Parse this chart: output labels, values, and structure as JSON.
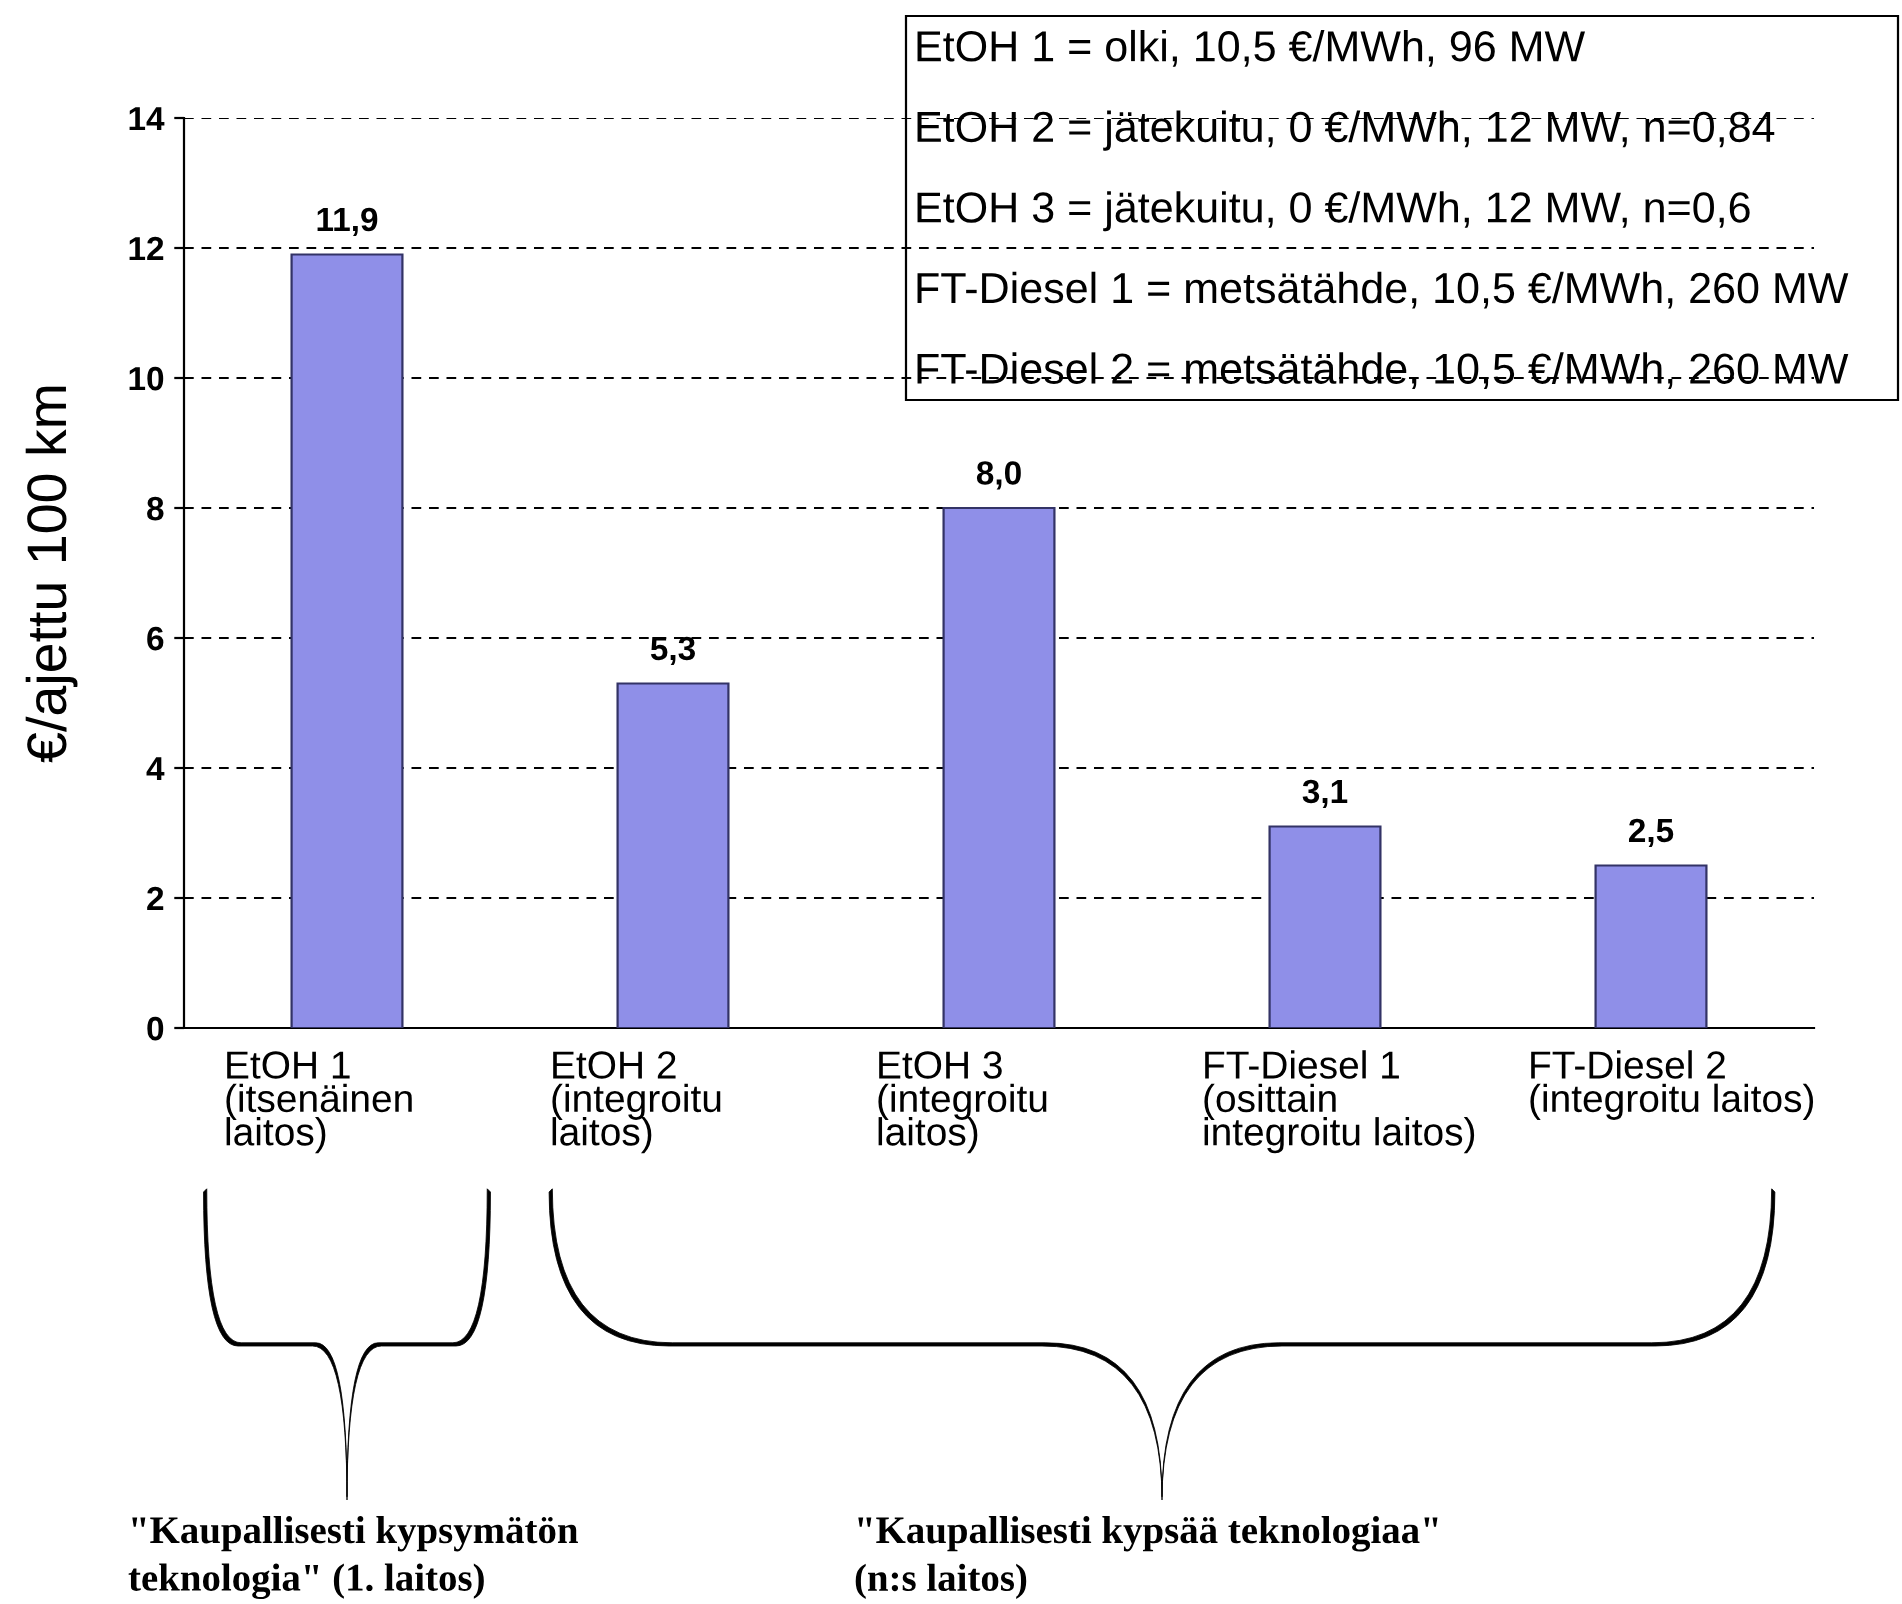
{
  "chart_data": {
    "type": "bar",
    "ylabel": "€/ajettu 100 km",
    "categories": [
      "EtOH 1\n(itsenäinen\nlaitos)",
      "EtOH 2\n(integroitu\nlaitos)",
      "EtOH 3\n(integroitu\nlaitos)",
      "FT-Diesel 1\n(osittain\nintegroitu laitos)",
      "FT-Diesel 2\n(integroitu laitos)"
    ],
    "values": [
      11.9,
      5.3,
      8.0,
      3.1,
      2.5
    ],
    "value_labels": [
      "11,9",
      "5,3",
      "8,0",
      "3,1",
      "2,5"
    ],
    "color": "#8f8fe8",
    "ylim": [
      0,
      14
    ],
    "yticks": [
      0,
      2,
      4,
      6,
      8,
      10,
      12,
      14
    ],
    "grid": "y",
    "annotations": [
      "EtOH 1 = olki, 10,5 €/MWh, 96 MW",
      "EtOH 2 = jätekuitu, 0 €/MWh, 12 MW, n=0,84",
      "EtOH 3 = jätekuitu, 0 €/MWh, 12 MW, n=0,6",
      "FT-Diesel 1 = metsätähde, 10,5 €/MWh, 260 MW",
      "FT-Diesel 2 = metsätähde, 10,5 €/MWh, 260 MW",
      "\"Kaupallisesti kypsymätön\nteknologia\" (1. laitos)",
      "\"Kaupallisesti kypsää teknologiaa\"\n(n:s laitos)"
    ]
  }
}
